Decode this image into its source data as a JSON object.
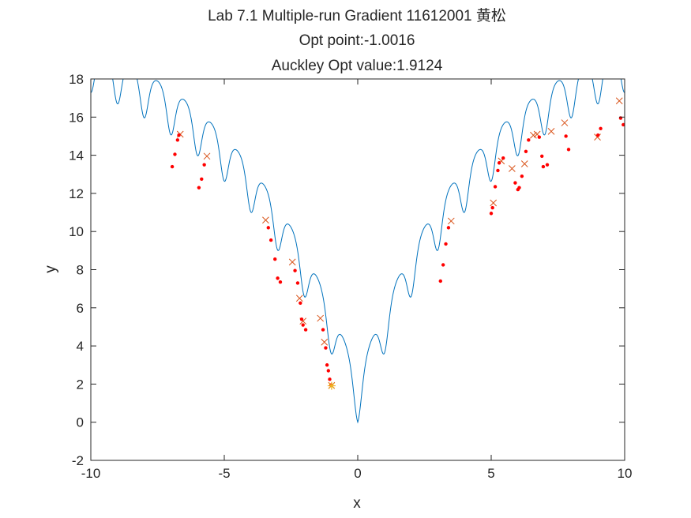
{
  "chart_data": {
    "type": "line",
    "title": [
      "Lab 7.1 Multiple-run Gradient 11612001 黄松",
      "Opt point:-1.0016",
      "Auckley Opt value:1.9124"
    ],
    "xlabel": "x",
    "ylabel": "y",
    "xlim": [
      -10,
      10
    ],
    "ylim": [
      -2,
      18
    ],
    "xticks": [
      -10,
      -5,
      0,
      5,
      10
    ],
    "yticks": [
      -2,
      0,
      2,
      4,
      6,
      8,
      10,
      12,
      14,
      16,
      18
    ],
    "grid": false,
    "legend": "none",
    "curve": {
      "function": "ackley_1d",
      "x_range": [
        -10,
        10
      ],
      "color": "#0072BD"
    },
    "series": [
      {
        "marker": "x",
        "color": "#D95319",
        "x": [
          -6.65,
          -5.65,
          -3.45,
          -2.45,
          -2.18,
          -1.4,
          -1.25,
          -0.98,
          5.08,
          5.38,
          5.78,
          6.25,
          6.58,
          6.72,
          7.25,
          7.75,
          8.98,
          9.8,
          3.5,
          -2.05
        ],
        "y": [
          15.1,
          13.95,
          10.6,
          8.4,
          6.5,
          5.45,
          4.2,
          1.93,
          11.5,
          13.7,
          13.3,
          13.55,
          15.05,
          15.1,
          15.25,
          15.7,
          14.95,
          16.85,
          10.55,
          5.3
        ]
      },
      {
        "marker": "dot",
        "color": "#FF0000",
        "x": [
          -6.95,
          -6.85,
          -6.75,
          -6.7,
          -5.95,
          -5.85,
          -5.75,
          -3.35,
          -3.25,
          -3.1,
          -3.0,
          -2.9,
          -2.35,
          -2.25,
          -2.15,
          -2.1,
          -2.05,
          -1.95,
          -1.3,
          -1.2,
          -1.15,
          -1.1,
          -1.05,
          -1.0,
          3.1,
          3.2,
          3.3,
          3.4,
          5.0,
          5.05,
          5.15,
          5.25,
          5.3,
          5.45,
          5.9,
          6.0,
          6.05,
          6.15,
          6.3,
          6.4,
          6.8,
          6.9,
          6.95,
          7.1,
          7.8,
          7.9,
          9.0,
          9.1,
          9.85,
          9.95
        ],
        "y": [
          13.4,
          14.05,
          14.8,
          15.05,
          12.3,
          12.75,
          13.5,
          10.2,
          9.55,
          8.55,
          7.55,
          7.35,
          7.95,
          7.3,
          6.25,
          5.4,
          5.1,
          4.85,
          4.85,
          3.9,
          3.0,
          2.7,
          2.25,
          1.95,
          7.4,
          8.25,
          9.35,
          10.2,
          10.95,
          11.25,
          12.35,
          13.2,
          13.6,
          13.85,
          12.55,
          12.2,
          12.3,
          12.9,
          14.2,
          14.8,
          14.95,
          13.95,
          13.4,
          13.5,
          15.0,
          14.3,
          15.05,
          15.4,
          15.95,
          15.6
        ]
      },
      {
        "marker": "star",
        "color": "#EDB120",
        "x": [
          -0.98
        ],
        "y": [
          1.91
        ]
      }
    ]
  }
}
